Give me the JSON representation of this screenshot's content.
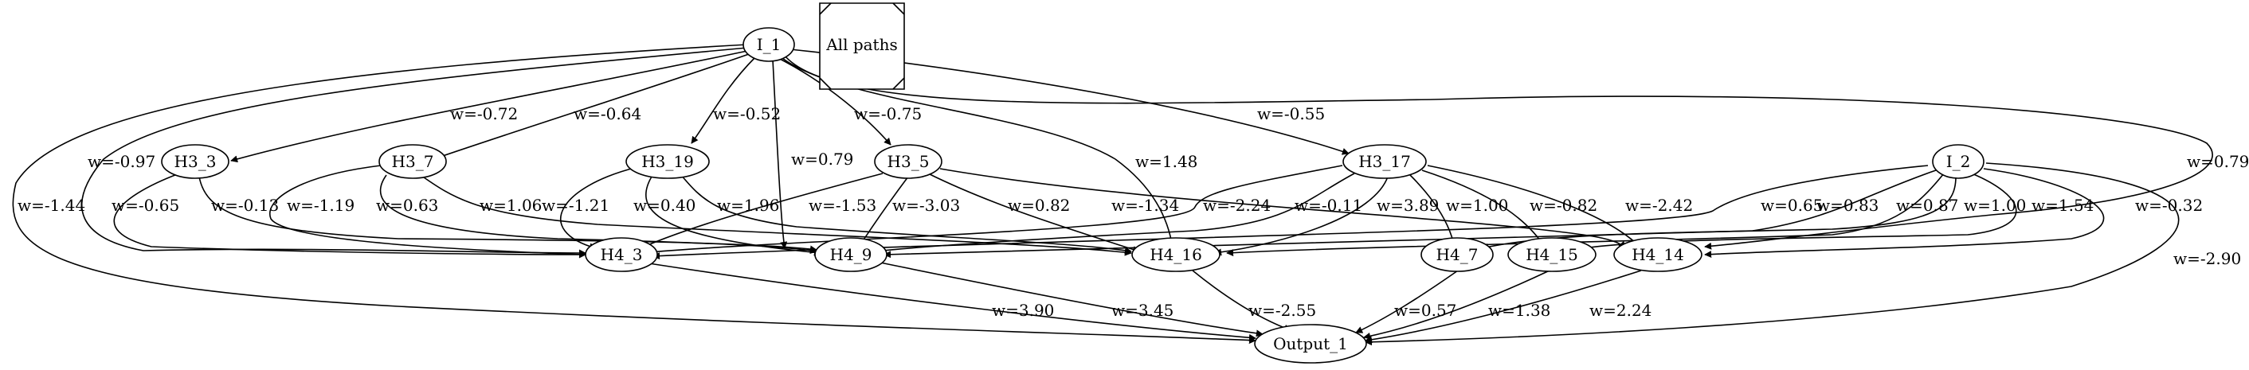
{
  "legend": {
    "label": "All paths"
  },
  "nodes": {
    "I_1": "I_1",
    "I_2": "I_2",
    "H3_3": "H3_3",
    "H3_7": "H3_7",
    "H3_19": "H3_19",
    "H3_5": "H3_5",
    "H3_17": "H3_17",
    "H4_3": "H4_3",
    "H4_9": "H4_9",
    "H4_16": "H4_16",
    "H4_7": "H4_7",
    "H4_15": "H4_15",
    "H4_14": "H4_14",
    "Output_1": "Output_1"
  },
  "edges": {
    "I_1-H3_3": "w=-0.72",
    "I_1-H3_7": "w=-0.64",
    "I_1-H3_19": "w=-0.52",
    "I_1-H3_5": "w=-0.75",
    "I_1-H3_17": "w=-0.55",
    "I_1-H4_3": "w=-0.97",
    "I_1-Output_1": "w=-1.44",
    "I_1-H4_9": "w=0.79",
    "I_1-H4_16": "w=1.48",
    "I_1-H4_14": "w=0.79",
    "H3_3-H4_3": "w=-0.65",
    "H3_3-H4_9": "w=-0.13",
    "H3_7-H4_3": "w=-1.19",
    "H3_7-H4_9": "w=0.63",
    "H3_7-H4_16": "w=1.06",
    "H3_19-H4_3": "w=-1.21",
    "H3_19-H4_9": "w=0.40",
    "H3_19-H4_16": "w=1.96",
    "H3_5-H4_3": "w=-1.53",
    "H3_5-H4_9": "w=-3.03",
    "H3_5-H4_16": "w=0.82",
    "H3_5-H4_14": "w=-1.34",
    "H3_17-H4_3": "w=-2.24",
    "H3_17-H4_9": "w=-0.11",
    "H3_17-H4_16": "w=3.89",
    "H3_17-H4_7": "w=1.00",
    "H3_17-H4_15": "w=-0.82",
    "H3_17-H4_14": "w=-2.42",
    "I_2-H4_3": "w=0.65",
    "I_2-H4_9": "w=0.83",
    "I_2-H4_16": "w=0.87",
    "I_2-H4_7": "w=1.00",
    "I_2-H4_15": "w=1.54",
    "I_2-H4_14": "w=-0.32",
    "I_2-Output_1": "w=-2.90",
    "H4_3-Output_1": "w=3.90",
    "H4_9-Output_1": "w=3.45",
    "H4_16-Output_1": "w=-2.55",
    "H4_7-Output_1": "w=0.57",
    "H4_15-Output_1": "w=1.38",
    "H4_14-Output_1": "w=2.24"
  }
}
